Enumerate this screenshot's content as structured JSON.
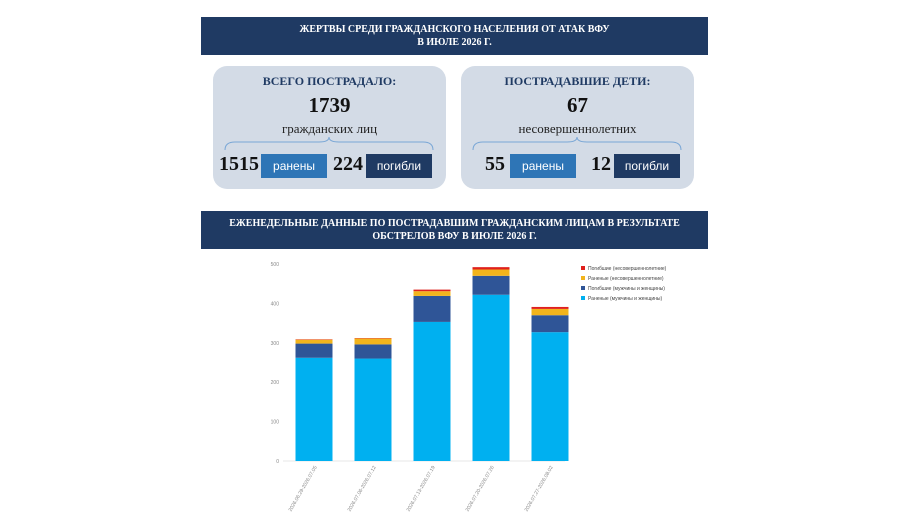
{
  "header": {
    "line1": "ЖЕРТВЫ СРЕДИ ГРАЖДАНСКОГО НАСЕЛЕНИЯ ОТ АТАК ВФУ",
    "line2": "В ИЮЛЕ 2026 Г."
  },
  "total_card": {
    "title": "ВСЕГО ПОСТРАДАЛО:",
    "total": "1739",
    "total_label": "гражданских лиц",
    "wounded": "1515",
    "wounded_label": "ранены",
    "killed": "224",
    "killed_label": "погибли"
  },
  "children_card": {
    "title": "ПОСТРАДАВШИЕ ДЕТИ:",
    "total": "67",
    "total_label": "несовершеннолетних",
    "wounded": "55",
    "wounded_label": "ранены",
    "killed": "12",
    "killed_label": "погибли"
  },
  "section": {
    "line1": "ЕЖЕНЕДЕЛЬНЫЕ ДАННЫЕ ПО ПОСТРАДАВШИМ ГРАЖДАНСКИМ ЛИЦАМ В РЕЗУЛЬТАТЕ",
    "line2": "ОБСТРЕЛОВ ВФУ В ИЮЛЕ 2026 Г."
  },
  "chart_data": {
    "type": "bar",
    "stacked": true,
    "categories": [
      "2026.06.29-2026.07.05",
      "2026.07.06-2026.07.12",
      "2026.07.13-2026.07.19",
      "2026.07.20-2026.07.26",
      "2026.07.27-2026.08.02"
    ],
    "series": [
      {
        "name": "Раненые (мужчины и женщины)",
        "color": "#00b0f0",
        "values": [
          262,
          260,
          353,
          422,
          327
        ]
      },
      {
        "name": "Погибшие (мужчины и женщины)",
        "color": "#2f5597",
        "values": [
          36,
          36,
          66,
          48,
          43
        ]
      },
      {
        "name": "Раненые (несовершеннолетние)",
        "color": "#f2b41c",
        "values": [
          10,
          15,
          12,
          16,
          16
        ]
      },
      {
        "name": "Погибшие (несовершеннолетние)",
        "color": "#e0201c",
        "values": [
          1,
          1,
          4,
          6,
          5
        ]
      }
    ],
    "ylim": [
      0,
      500
    ],
    "yticks": [
      "0",
      "100",
      "200",
      "300",
      "400",
      "500"
    ],
    "legend_position": "right",
    "grid": false
  }
}
